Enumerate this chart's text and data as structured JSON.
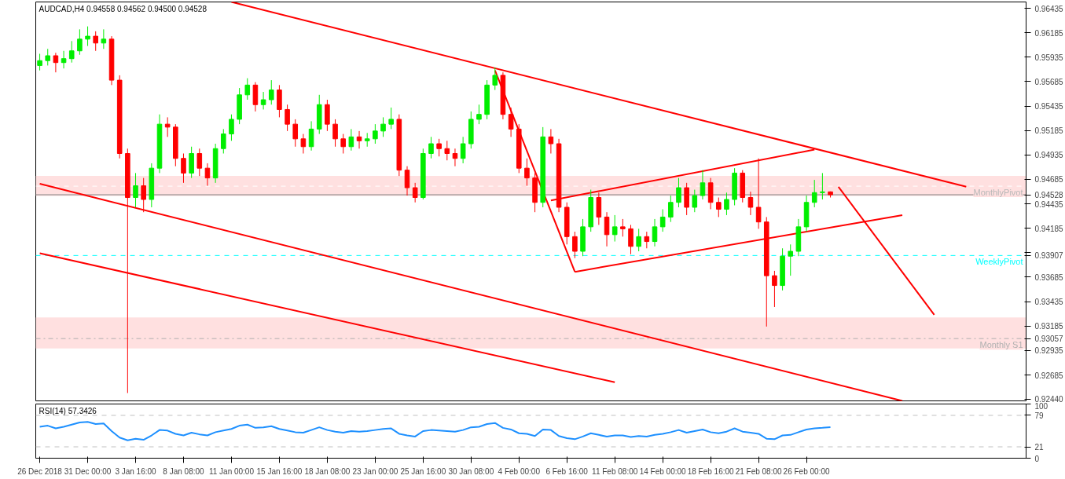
{
  "chart_data": [
    {
      "type": "candlestick",
      "title": "AUDCAD,H4 0.94558 0.94562 0.94500 0.94528",
      "categories": [
        null,
        null,
        null,
        null,
        null,
        null,
        null,
        null,
        null,
        null,
        null,
        null,
        null,
        null,
        null,
        null,
        null,
        null,
        null,
        null,
        null,
        null,
        null,
        null,
        null,
        null,
        null,
        null,
        null,
        null,
        null,
        null,
        null,
        null,
        null,
        null,
        null,
        null,
        null,
        null,
        null,
        null,
        null,
        null,
        null,
        null,
        null,
        null,
        null,
        null,
        null,
        null,
        null,
        null,
        null,
        null,
        null,
        null,
        null,
        null,
        null,
        null,
        null,
        null,
        null,
        null,
        null,
        null,
        null,
        null,
        null,
        null,
        null,
        null,
        null,
        null,
        null,
        null,
        null,
        null,
        null,
        null,
        null,
        null,
        null,
        null,
        null,
        null,
        null,
        null,
        null,
        null,
        null,
        null,
        null,
        null,
        null,
        null,
        null,
        null,
        null,
        null,
        null,
        null,
        null,
        null,
        null,
        null,
        null,
        null,
        null,
        null,
        null,
        null,
        null,
        null,
        null,
        null,
        null,
        null,
        null,
        null,
        null,
        null
      ],
      "ohlc": [
        [
          0.9585,
          0.9597,
          0.958,
          0.959
        ],
        [
          0.959,
          0.9602,
          0.9585,
          0.9595
        ],
        [
          0.9595,
          0.9598,
          0.9578,
          0.9588
        ],
        [
          0.9588,
          0.96,
          0.9582,
          0.9592
        ],
        [
          0.9592,
          0.961,
          0.9588,
          0.96
        ],
        [
          0.96,
          0.9622,
          0.9596,
          0.9612
        ],
        [
          0.9612,
          0.9625,
          0.9605,
          0.9615
        ],
        [
          0.9615,
          0.962,
          0.96,
          0.9608
        ],
        [
          0.9608,
          0.9622,
          0.9602,
          0.9612
        ],
        [
          0.9612,
          0.9615,
          0.9565,
          0.957
        ],
        [
          0.957,
          0.9575,
          0.949,
          0.9495
        ],
        [
          0.9495,
          0.95,
          0.925,
          0.945
        ],
        [
          0.945,
          0.9475,
          0.944,
          0.9462
        ],
        [
          0.9462,
          0.947,
          0.9435,
          0.9448
        ],
        [
          0.9448,
          0.9485,
          0.944,
          0.948
        ],
        [
          0.948,
          0.9535,
          0.9475,
          0.9525
        ],
        [
          0.9525,
          0.9532,
          0.9512,
          0.9522
        ],
        [
          0.9522,
          0.9525,
          0.9482,
          0.949
        ],
        [
          0.949,
          0.9495,
          0.9465,
          0.9475
        ],
        [
          0.9475,
          0.9502,
          0.947,
          0.9495
        ],
        [
          0.9495,
          0.95,
          0.9472,
          0.948
        ],
        [
          0.948,
          0.9485,
          0.9462,
          0.947
        ],
        [
          0.947,
          0.9505,
          0.9465,
          0.95
        ],
        [
          0.95,
          0.952,
          0.9495,
          0.9515
        ],
        [
          0.9515,
          0.9535,
          0.9508,
          0.953
        ],
        [
          0.953,
          0.9562,
          0.9525,
          0.9555
        ],
        [
          0.9555,
          0.9572,
          0.955,
          0.9565
        ],
        [
          0.9565,
          0.9568,
          0.9538,
          0.9545
        ],
        [
          0.9545,
          0.9558,
          0.954,
          0.955
        ],
        [
          0.955,
          0.957,
          0.9545,
          0.956
        ],
        [
          0.956,
          0.9565,
          0.9532,
          0.954
        ],
        [
          0.954,
          0.9545,
          0.9518,
          0.9525
        ],
        [
          0.9525,
          0.953,
          0.9502,
          0.951
        ],
        [
          0.951,
          0.9515,
          0.9495,
          0.9502
        ],
        [
          0.9502,
          0.9528,
          0.9498,
          0.952
        ],
        [
          0.952,
          0.9555,
          0.9515,
          0.9545
        ],
        [
          0.9545,
          0.955,
          0.9518,
          0.9525
        ],
        [
          0.9525,
          0.953,
          0.9502,
          0.951
        ],
        [
          0.951,
          0.9515,
          0.9495,
          0.9502
        ],
        [
          0.9502,
          0.952,
          0.9498,
          0.9512
        ],
        [
          0.9512,
          0.9518,
          0.95,
          0.9508
        ],
        [
          0.9508,
          0.9516,
          0.9502,
          0.951
        ],
        [
          0.951,
          0.9525,
          0.9505,
          0.9518
        ],
        [
          0.9518,
          0.9532,
          0.9512,
          0.9525
        ],
        [
          0.9525,
          0.9542,
          0.952,
          0.953
        ],
        [
          0.953,
          0.9535,
          0.9472,
          0.9478
        ],
        [
          0.9478,
          0.9482,
          0.9452,
          0.946
        ],
        [
          0.946,
          0.9465,
          0.9445,
          0.945
        ],
        [
          0.945,
          0.95,
          0.9448,
          0.9495
        ],
        [
          0.9495,
          0.9512,
          0.949,
          0.9505
        ],
        [
          0.9505,
          0.951,
          0.9492,
          0.95
        ],
        [
          0.95,
          0.9508,
          0.9488,
          0.9495
        ],
        [
          0.9495,
          0.95,
          0.9482,
          0.949
        ],
        [
          0.949,
          0.9512,
          0.9485,
          0.9505
        ],
        [
          0.9505,
          0.9538,
          0.95,
          0.953
        ],
        [
          0.953,
          0.9545,
          0.9525,
          0.9535
        ],
        [
          0.9535,
          0.957,
          0.953,
          0.9565
        ],
        [
          0.9565,
          0.9583,
          0.956,
          0.9575
        ],
        [
          0.9575,
          0.9578,
          0.953,
          0.9535
        ],
        [
          0.9535,
          0.9542,
          0.9512,
          0.952
        ],
        [
          0.952,
          0.9525,
          0.9475,
          0.948
        ],
        [
          0.948,
          0.949,
          0.9462,
          0.947
        ],
        [
          0.947,
          0.9475,
          0.9435,
          0.9445
        ],
        [
          0.9445,
          0.9522,
          0.944,
          0.9512
        ],
        [
          0.9512,
          0.952,
          0.9495,
          0.9505
        ],
        [
          0.9505,
          0.951,
          0.9435,
          0.944
        ],
        [
          0.944,
          0.9445,
          0.9402,
          0.941
        ],
        [
          0.941,
          0.9415,
          0.9388,
          0.9395
        ],
        [
          0.9395,
          0.9428,
          0.939,
          0.942
        ],
        [
          0.942,
          0.9458,
          0.9415,
          0.945
        ],
        [
          0.945,
          0.9455,
          0.9422,
          0.943
        ],
        [
          0.943,
          0.9435,
          0.94,
          0.9412
        ],
        [
          0.9412,
          0.9432,
          0.9405,
          0.942
        ],
        [
          0.942,
          0.9428,
          0.941,
          0.9418
        ],
        [
          0.9418,
          0.9422,
          0.9392,
          0.94
        ],
        [
          0.94,
          0.9418,
          0.9395,
          0.941
        ],
        [
          0.941,
          0.9415,
          0.9398,
          0.9405
        ],
        [
          0.9405,
          0.9428,
          0.94,
          0.942
        ],
        [
          0.942,
          0.9438,
          0.9415,
          0.943
        ],
        [
          0.943,
          0.9452,
          0.9425,
          0.9445
        ],
        [
          0.9445,
          0.947,
          0.944,
          0.946
        ],
        [
          0.946,
          0.9465,
          0.9432,
          0.944
        ],
        [
          0.944,
          0.9458,
          0.9435,
          0.9452
        ],
        [
          0.9452,
          0.9478,
          0.9448,
          0.9465
        ],
        [
          0.9465,
          0.947,
          0.9438,
          0.9445
        ],
        [
          0.9445,
          0.945,
          0.943,
          0.9438
        ],
        [
          0.9438,
          0.9455,
          0.9432,
          0.9448
        ],
        [
          0.9448,
          0.948,
          0.9442,
          0.9475
        ],
        [
          0.9475,
          0.9478,
          0.9445,
          0.945
        ],
        [
          0.945,
          0.9456,
          0.9432,
          0.944
        ],
        [
          0.944,
          0.949,
          0.9418,
          0.9425
        ],
        [
          0.9425,
          0.943,
          0.9318,
          0.937
        ],
        [
          0.937,
          0.9375,
          0.9338,
          0.936
        ],
        [
          0.936,
          0.9398,
          0.9355,
          0.939
        ],
        [
          0.939,
          0.9402,
          0.937,
          0.9395
        ],
        [
          0.9395,
          0.9428,
          0.939,
          0.942
        ],
        [
          0.942,
          0.9452,
          0.9415,
          0.9445
        ],
        [
          0.9445,
          0.9468,
          0.944,
          0.9455
        ],
        [
          0.9455,
          0.9475,
          0.9448,
          0.94558
        ],
        [
          0.94558,
          0.94562,
          0.945,
          0.94528
        ],
        null,
        null,
        null,
        null,
        null,
        null,
        null,
        null,
        null,
        null,
        null,
        null,
        null,
        null,
        null,
        null,
        null,
        null,
        null,
        null,
        null,
        null,
        null,
        null
      ],
      "series": [
        {
          "type": "line",
          "color": "#ff0000",
          "values": [
            null,
            null,
            null,
            null,
            null,
            null,
            null,
            null,
            null,
            null,
            null,
            null,
            null,
            null,
            null,
            null,
            null,
            null,
            null,
            null,
            null,
            null,
            null,
            null,
            0.965,
            null,
            null,
            null,
            null,
            null,
            null,
            null,
            null,
            null,
            null,
            null,
            null,
            null,
            null,
            null,
            null,
            null,
            null,
            null,
            null,
            null,
            null,
            null,
            null,
            null,
            null,
            null,
            null,
            null,
            null,
            null,
            null,
            null,
            null,
            null,
            null,
            null,
            null,
            null,
            null,
            null,
            null,
            null,
            null,
            null,
            null,
            null,
            null,
            null,
            null,
            null,
            null,
            null,
            null,
            null,
            null,
            null,
            null,
            null,
            null,
            null,
            null,
            null,
            null,
            null,
            null,
            null,
            null,
            null,
            null,
            null,
            null,
            null,
            null,
            null,
            null,
            null,
            null,
            null,
            null,
            null,
            null,
            null,
            null,
            null,
            null,
            null,
            null,
            null,
            null,
            null,
            0.9461,
            null,
            null,
            null,
            null,
            null,
            null,
            null
          ]
        },
        {
          "type": "line",
          "color": "#ff0000",
          "values": [
            0.9464,
            null,
            null,
            null,
            null,
            null,
            null,
            null,
            null,
            null,
            null,
            null,
            null,
            null,
            null,
            null,
            null,
            null,
            null,
            null,
            null,
            null,
            null,
            null,
            null,
            null,
            null,
            null,
            null,
            null,
            null,
            null,
            null,
            null,
            null,
            null,
            null,
            null,
            null,
            null,
            null,
            null,
            null,
            null,
            null,
            null,
            null,
            null,
            null,
            null,
            null,
            null,
            null,
            null,
            null,
            null,
            null,
            null,
            null,
            null,
            null,
            null,
            null,
            null,
            null,
            null,
            null,
            null,
            null,
            null,
            null,
            null,
            null,
            null,
            null,
            null,
            null,
            null,
            null,
            null,
            null,
            null,
            null,
            null,
            null,
            null,
            null,
            null,
            null,
            null,
            null,
            null,
            null,
            null,
            null,
            null,
            null,
            null,
            null,
            null,
            null,
            null,
            null,
            null,
            null,
            null,
            null,
            null,
            0.9242,
            null,
            null,
            null,
            null,
            null,
            null,
            null,
            null,
            null,
            null,
            null,
            null,
            null,
            null,
            null
          ]
        },
        {
          "type": "line",
          "color": "#ff0000",
          "values": [
            0.9393,
            null,
            null,
            null,
            null,
            null,
            null,
            null,
            null,
            null,
            null,
            null,
            null,
            null,
            null,
            null,
            null,
            null,
            null,
            null,
            null,
            null,
            null,
            null,
            null,
            null,
            null,
            null,
            null,
            null,
            null,
            null,
            null,
            null,
            null,
            null,
            null,
            null,
            null,
            null,
            null,
            null,
            null,
            null,
            null,
            null,
            null,
            null,
            null,
            null,
            null,
            null,
            null,
            null,
            null,
            null,
            null,
            null,
            null,
            null,
            null,
            null,
            null,
            null,
            null,
            null,
            null,
            null,
            null,
            null,
            null,
            null,
            0.9261,
            null,
            null,
            null,
            null,
            null,
            null,
            null,
            null,
            null,
            null,
            null,
            null,
            null,
            null,
            null,
            null,
            null,
            null,
            null,
            null,
            null,
            null,
            null,
            null,
            null,
            null,
            null,
            null,
            null,
            null,
            null,
            null,
            null,
            null,
            null,
            null,
            null,
            null,
            null,
            null,
            null,
            null,
            null,
            null,
            null,
            null,
            null,
            null,
            null,
            null,
            null
          ]
        },
        {
          "type": "line",
          "color": "#ff0000",
          "values": [
            null,
            null,
            null,
            null,
            null,
            null,
            null,
            null,
            null,
            null,
            null,
            null,
            null,
            null,
            null,
            null,
            null,
            null,
            null,
            null,
            null,
            null,
            null,
            null,
            null,
            null,
            null,
            null,
            null,
            null,
            null,
            null,
            null,
            null,
            null,
            null,
            null,
            null,
            null,
            null,
            null,
            null,
            null,
            null,
            null,
            null,
            null,
            null,
            null,
            null,
            null,
            null,
            null,
            null,
            null,
            null,
            null,
            0.958,
            null,
            null,
            null,
            null,
            null,
            null,
            null,
            null,
            null,
            0.9374,
            null,
            null,
            null,
            null,
            null,
            null,
            null,
            null,
            null,
            null,
            null,
            null,
            null,
            null,
            null,
            null,
            null,
            null,
            null,
            null,
            null,
            null,
            null,
            null,
            null,
            null,
            null,
            null,
            null,
            null,
            null,
            null,
            null,
            null,
            null,
            null,
            null,
            null,
            null,
            null,
            null,
            null,
            null,
            null,
            null,
            null,
            null,
            null,
            null,
            null,
            null,
            null,
            null,
            null,
            null,
            null
          ]
        },
        {
          "type": "line",
          "color": "#ff0000",
          "values": [
            null,
            null,
            null,
            null,
            null,
            null,
            null,
            null,
            null,
            null,
            null,
            null,
            null,
            null,
            null,
            null,
            null,
            null,
            null,
            null,
            null,
            null,
            null,
            null,
            null,
            null,
            null,
            null,
            null,
            null,
            null,
            null,
            null,
            null,
            null,
            null,
            null,
            null,
            null,
            null,
            null,
            null,
            null,
            null,
            null,
            null,
            null,
            null,
            null,
            null,
            null,
            null,
            null,
            null,
            null,
            null,
            null,
            null,
            null,
            null,
            null,
            null,
            null,
            null,
            0.9447,
            null,
            null,
            null,
            null,
            null,
            null,
            null,
            null,
            null,
            null,
            null,
            null,
            null,
            null,
            null,
            null,
            null,
            null,
            null,
            null,
            null,
            null,
            null,
            null,
            null,
            null,
            null,
            null,
            null,
            null,
            null,
            null,
            0.9499,
            null,
            null,
            null,
            null,
            null,
            null,
            null,
            null,
            null,
            null,
            null,
            null,
            null,
            null,
            null,
            null,
            null,
            null,
            null,
            null,
            null,
            null,
            null,
            null,
            null,
            null
          ]
        },
        {
          "type": "line",
          "color": "#ff0000",
          "values": [
            null,
            null,
            null,
            null,
            null,
            null,
            null,
            null,
            null,
            null,
            null,
            null,
            null,
            null,
            null,
            null,
            null,
            null,
            null,
            null,
            null,
            null,
            null,
            null,
            null,
            null,
            null,
            null,
            null,
            null,
            null,
            null,
            null,
            null,
            null,
            null,
            null,
            null,
            null,
            null,
            null,
            null,
            null,
            null,
            null,
            null,
            null,
            null,
            null,
            null,
            null,
            null,
            null,
            null,
            null,
            null,
            null,
            null,
            null,
            null,
            null,
            null,
            null,
            null,
            null,
            null,
            null,
            0.9374,
            null,
            null,
            null,
            null,
            null,
            null,
            null,
            null,
            null,
            null,
            null,
            null,
            null,
            null,
            null,
            null,
            null,
            null,
            null,
            null,
            null,
            null,
            null,
            null,
            null,
            null,
            null,
            null,
            null,
            null,
            null,
            null,
            null,
            null,
            null,
            null,
            null,
            null,
            null,
            null,
            0.9432,
            null,
            null,
            null,
            null,
            null,
            null,
            null,
            null,
            null,
            null,
            null,
            null,
            null,
            null,
            null
          ]
        },
        {
          "type": "line",
          "color": "#ff0000",
          "values": [
            null,
            null,
            null,
            null,
            null,
            null,
            null,
            null,
            null,
            null,
            null,
            null,
            null,
            null,
            null,
            null,
            null,
            null,
            null,
            null,
            null,
            null,
            null,
            null,
            null,
            null,
            null,
            null,
            null,
            null,
            null,
            null,
            null,
            null,
            null,
            null,
            null,
            null,
            null,
            null,
            null,
            null,
            null,
            null,
            null,
            null,
            null,
            null,
            null,
            null,
            null,
            null,
            null,
            null,
            null,
            null,
            null,
            null,
            null,
            null,
            null,
            null,
            null,
            null,
            null,
            null,
            null,
            null,
            null,
            null,
            null,
            null,
            null,
            null,
            null,
            null,
            null,
            null,
            null,
            null,
            null,
            null,
            null,
            null,
            null,
            null,
            null,
            null,
            null,
            null,
            null,
            null,
            null,
            null,
            null,
            null,
            null,
            null,
            null,
            null,
            0.9461,
            null,
            null,
            null,
            null,
            null,
            null,
            null,
            null,
            null,
            null,
            null,
            0.933,
            null,
            null,
            null,
            null,
            null,
            null,
            null,
            null,
            null,
            null,
            null
          ]
        }
      ],
      "bands": [
        {
          "axis": "y",
          "from": 0.94517,
          "to": 0.94722,
          "color": "#ffe0e0"
        },
        {
          "axis": "y",
          "from": 0.92956,
          "to": 0.93274,
          "color": "#ffe0e0"
        }
      ],
      "ref_lines": [
        {
          "axis": "y",
          "value": 0.94616,
          "label": "MonthlyPivot",
          "color": "#ffffff",
          "line_style": "dashed"
        },
        {
          "axis": "y",
          "value": 0.94528,
          "label": null,
          "color": "#808080",
          "line_style": "solid"
        },
        {
          "axis": "y",
          "value": 0.93907,
          "label": "WeeklyPivot",
          "color": "#00ffff",
          "line_style": "dashed"
        },
        {
          "axis": "y",
          "value": 0.93057,
          "label": "Monthly S1",
          "color": "#b0b0b0",
          "line_style": "dashdot"
        }
      ],
      "ylim": [
        0.9242,
        0.965
      ],
      "yticks": [
        {
          "value": 0.9244,
          "label": "0.92440"
        },
        0.92685,
        0.92935,
        {
          "value": 0.93057,
          "label": "0.93057"
        },
        0.93185,
        0.93435,
        0.93685,
        {
          "value": 0.93907,
          "label": "0.93907"
        },
        {
          "value": 0.93935,
          "label": null
        },
        0.94185,
        0.94435,
        {
          "value": 0.94528,
          "label": "0.94528"
        },
        0.94685,
        0.94935,
        0.95185,
        0.95435,
        0.95685,
        0.95935,
        0.96185,
        0.96435
      ],
      "grid": false
    },
    {
      "type": "line",
      "title": "RSI(14) 57.3426",
      "categories": [
        "26 Dec 2018",
        null,
        null,
        null,
        null,
        null,
        "31 Dec 00:00",
        null,
        null,
        null,
        null,
        null,
        "3 Jan 16:00",
        null,
        null,
        null,
        null,
        null,
        "8 Jan 08:00",
        null,
        null,
        null,
        null,
        null,
        "11 Jan 00:00",
        null,
        null,
        null,
        null,
        null,
        "15 Jan 16:00",
        null,
        null,
        null,
        null,
        null,
        "18 Jan 08:00",
        null,
        null,
        null,
        null,
        null,
        "23 Jan 00:00",
        null,
        null,
        null,
        null,
        null,
        "25 Jan 16:00",
        null,
        null,
        null,
        null,
        null,
        "30 Jan 08:00",
        null,
        null,
        null,
        null,
        null,
        "4 Feb 00:00",
        null,
        null,
        null,
        null,
        null,
        "6 Feb 16:00",
        null,
        null,
        null,
        null,
        null,
        "11 Feb 08:00",
        null,
        null,
        null,
        null,
        null,
        "14 Feb 00:00",
        null,
        null,
        null,
        null,
        null,
        "18 Feb 16:00",
        null,
        null,
        null,
        null,
        null,
        "21 Feb 08:00",
        null,
        null,
        null,
        null,
        null,
        "26 Feb 00:00",
        null,
        null,
        null,
        null,
        null,
        null,
        null,
        null,
        null,
        null,
        null,
        null,
        null,
        null,
        null,
        null,
        null,
        null,
        null,
        null,
        null,
        null,
        null,
        null,
        null,
        null,
        null
      ],
      "series": [
        {
          "color": "#1e90ff",
          "values": [
            58,
            60,
            55,
            58,
            62,
            66,
            67,
            63,
            64,
            50,
            38,
            33,
            36,
            34,
            42,
            52,
            51,
            45,
            42,
            47,
            44,
            42,
            48,
            51,
            54,
            60,
            62,
            56,
            57,
            59,
            54,
            51,
            48,
            47,
            52,
            57,
            52,
            49,
            47,
            50,
            49,
            50,
            52,
            54,
            55,
            45,
            42,
            40,
            50,
            52,
            51,
            50,
            49,
            52,
            57,
            58,
            63,
            65,
            56,
            53,
            46,
            45,
            41,
            53,
            52,
            41,
            37,
            35,
            40,
            46,
            43,
            40,
            42,
            42,
            39,
            41,
            40,
            43,
            45,
            48,
            52,
            47,
            50,
            53,
            48,
            46,
            49,
            55,
            49,
            47,
            45,
            36,
            35,
            42,
            43,
            48,
            53,
            55,
            56,
            57.3426,
            null,
            null,
            null,
            null,
            null,
            null,
            null,
            null,
            null,
            null,
            null,
            null,
            null,
            null,
            null,
            null,
            null,
            null,
            null,
            null,
            null,
            null,
            null,
            null
          ]
        }
      ],
      "ref_lines": [
        {
          "axis": "y",
          "value": 79,
          "label": null,
          "color": "#c0c0c0",
          "line_style": "dashed"
        },
        {
          "axis": "y",
          "value": 21,
          "label": null,
          "color": "#c0c0c0",
          "line_style": "dashed"
        }
      ],
      "ylim": [
        0,
        100
      ],
      "yticks": [
        0,
        21,
        79,
        100
      ],
      "grid": false,
      "marker": "none",
      "line_style": "solid"
    }
  ]
}
